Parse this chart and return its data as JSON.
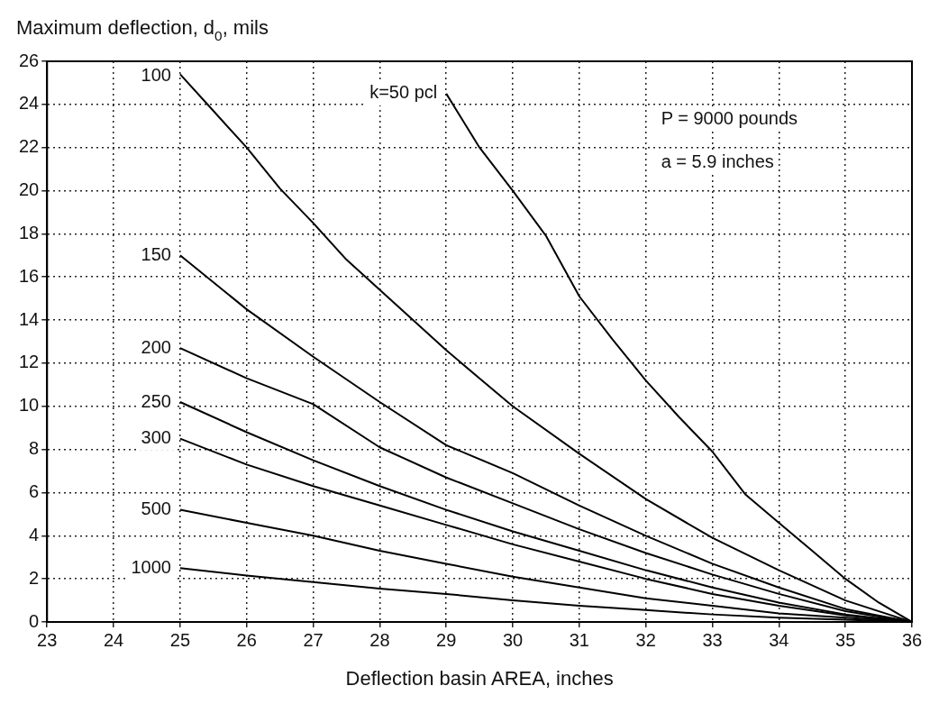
{
  "chart_data": {
    "type": "line",
    "xlabel": "Deflection basin AREA, inches",
    "ylabel": "Maximum deflection, d$_{0}$, mils",
    "annotations": [
      "P = 9000 pounds",
      "a = 5.9 inches"
    ],
    "xlim": [
      23,
      36
    ],
    "xticks": [
      23,
      24,
      25,
      26,
      27,
      28,
      29,
      30,
      31,
      32,
      33,
      34,
      35,
      36
    ],
    "ylim": [
      0,
      26
    ],
    "yticks": [
      0,
      2,
      4,
      6,
      8,
      10,
      12,
      14,
      16,
      18,
      20,
      22,
      24,
      26
    ],
    "grid": true,
    "legend": false,
    "marker": "none",
    "line_style": "solid",
    "series": [
      {
        "name": "k=50 pcl",
        "color": "#000000",
        "x": [
          29,
          29.5,
          30,
          30.5,
          31,
          31.5,
          32,
          32.5,
          33,
          33.5,
          34,
          34.5,
          35,
          35.5,
          36
        ],
        "values": [
          24.5,
          22,
          20,
          17.9,
          15.1,
          13.1,
          11.2,
          9.5,
          7.9,
          5.9,
          4.6,
          3.3,
          2,
          0.9,
          0
        ]
      },
      {
        "name": "100",
        "color": "#000000",
        "x": [
          25,
          25.5,
          26,
          26.5,
          27,
          27.5,
          28,
          28.5,
          29,
          29.5,
          30,
          31,
          32,
          33,
          34,
          35,
          36
        ],
        "values": [
          25.4,
          23.7,
          22,
          20.1,
          18.5,
          16.8,
          15.4,
          14,
          12.6,
          11.3,
          10,
          7.8,
          5.7,
          3.9,
          2.4,
          1,
          0
        ]
      },
      {
        "name": "150",
        "color": "#000000",
        "x": [
          25,
          26,
          27,
          28,
          29,
          30,
          31,
          32,
          33,
          34,
          35,
          36
        ],
        "values": [
          17,
          14.5,
          12.3,
          10.2,
          8.2,
          6.9,
          5.4,
          4,
          2.7,
          1.6,
          0.6,
          0
        ]
      },
      {
        "name": "200",
        "color": "#000000",
        "x": [
          25,
          26,
          27,
          28,
          29,
          30,
          31,
          32,
          33,
          34,
          35,
          36
        ],
        "values": [
          12.7,
          11.3,
          10.1,
          8.1,
          6.7,
          5.5,
          4.3,
          3.2,
          2.2,
          1.3,
          0.5,
          0
        ]
      },
      {
        "name": "250",
        "color": "#000000",
        "x": [
          25,
          26,
          27,
          28,
          29,
          30,
          31,
          32,
          33,
          34,
          35,
          36
        ],
        "values": [
          10.2,
          8.8,
          7.5,
          6.3,
          5.2,
          4.2,
          3.3,
          2.4,
          1.6,
          0.9,
          0.35,
          0
        ]
      },
      {
        "name": "300",
        "color": "#000000",
        "x": [
          25,
          26,
          27,
          28,
          29,
          30,
          31,
          32,
          33,
          34,
          35,
          36
        ],
        "values": [
          8.5,
          7.3,
          6.3,
          5.4,
          4.5,
          3.6,
          2.8,
          2,
          1.3,
          0.75,
          0.3,
          0
        ]
      },
      {
        "name": "500",
        "color": "#000000",
        "x": [
          25,
          26,
          27,
          28,
          29,
          30,
          31,
          32,
          33,
          34,
          35,
          36
        ],
        "values": [
          5.2,
          4.6,
          4,
          3.3,
          2.7,
          2.1,
          1.6,
          1.1,
          0.75,
          0.4,
          0.2,
          0
        ]
      },
      {
        "name": "1000",
        "color": "#000000",
        "x": [
          25,
          26,
          27,
          28,
          29,
          30,
          31,
          32,
          33,
          34,
          35,
          36
        ],
        "values": [
          2.5,
          2.15,
          1.85,
          1.55,
          1.3,
          1,
          0.75,
          0.55,
          0.35,
          0.2,
          0.1,
          0
        ]
      }
    ]
  }
}
